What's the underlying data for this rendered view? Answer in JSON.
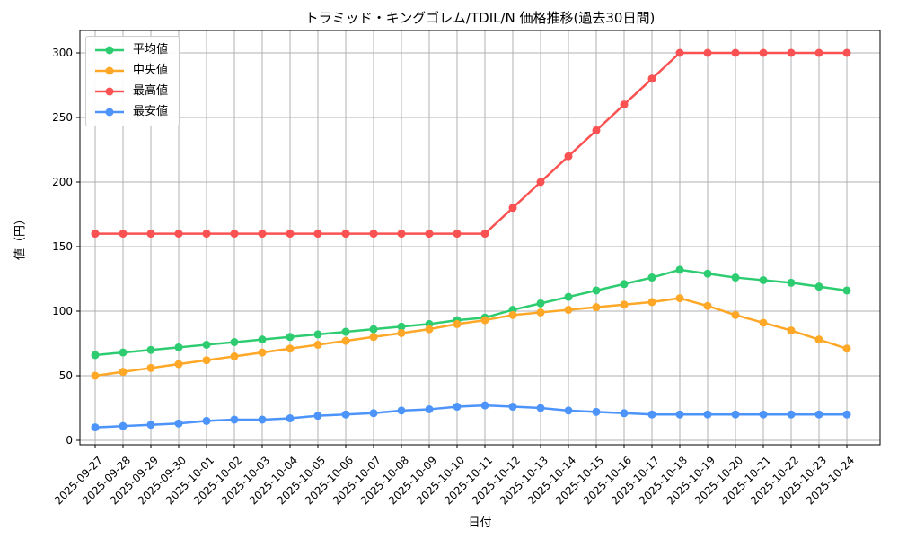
{
  "chart_data": {
    "type": "line",
    "title": "トラミッド・キングゴレム/TDIL/N 価格推移(過去30日間)",
    "xlabel": "日付",
    "ylabel": "値（円）",
    "grid": true,
    "legend_position": "upper-left",
    "ylim": [
      -5,
      315
    ],
    "yticks": [
      0,
      50,
      100,
      150,
      200,
      250,
      300
    ],
    "categories": [
      "2025-09-27",
      "2025-09-28",
      "2025-09-29",
      "2025-09-30",
      "2025-10-01",
      "2025-10-02",
      "2025-10-03",
      "2025-10-04",
      "2025-10-05",
      "2025-10-06",
      "2025-10-07",
      "2025-10-08",
      "2025-10-09",
      "2025-10-10",
      "2025-10-11",
      "2025-10-12",
      "2025-10-13",
      "2025-10-14",
      "2025-10-15",
      "2025-10-16",
      "2025-10-17",
      "2025-10-18",
      "2025-10-19",
      "2025-10-20",
      "2025-10-21",
      "2025-10-22",
      "2025-10-23",
      "2025-10-24"
    ],
    "series": [
      {
        "key": "avg",
        "name": "平均値",
        "color": "#2ecc71",
        "values": [
          66,
          68,
          70,
          72,
          74,
          76,
          78,
          80,
          82,
          84,
          86,
          88,
          90,
          93,
          95,
          101,
          106,
          111,
          116,
          121,
          126,
          132,
          129,
          126,
          124,
          122,
          119,
          116
        ]
      },
      {
        "key": "median",
        "name": "中央値",
        "color": "#ffa726",
        "values": [
          50,
          53,
          56,
          59,
          62,
          65,
          68,
          71,
          74,
          77,
          80,
          83,
          86,
          90,
          93,
          97,
          99,
          101,
          103,
          105,
          107,
          110,
          104,
          97,
          91,
          85,
          78,
          71
        ]
      },
      {
        "key": "max",
        "name": "最高値",
        "color": "#fa5252",
        "values": [
          160,
          160,
          160,
          160,
          160,
          160,
          160,
          160,
          160,
          160,
          160,
          160,
          160,
          160,
          160,
          180,
          200,
          220,
          240,
          260,
          280,
          300,
          300,
          300,
          300,
          300,
          300,
          300
        ]
      },
      {
        "key": "min",
        "name": "最安値",
        "color": "#4d94fa",
        "values": [
          10,
          11,
          12,
          13,
          15,
          16,
          16,
          17,
          19,
          20,
          21,
          23,
          24,
          26,
          27,
          26,
          25,
          23,
          22,
          21,
          20,
          20,
          20,
          20,
          20,
          20,
          20,
          20
        ]
      }
    ]
  },
  "colors": {
    "grid": "#b0b0b0",
    "spine": "#000000",
    "legend_border": "#cccccc",
    "text": "#000000"
  }
}
